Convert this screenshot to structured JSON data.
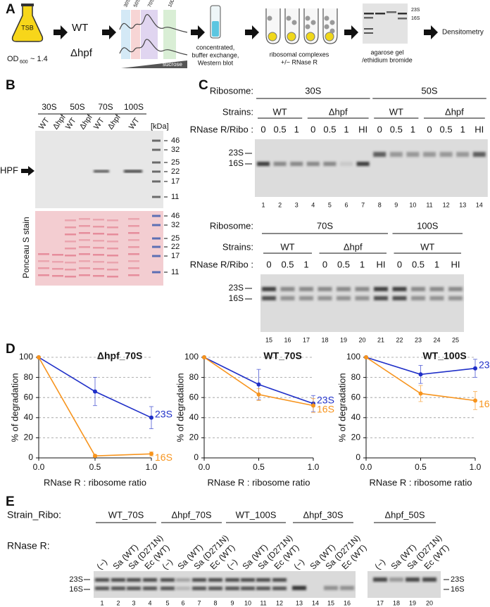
{
  "panel_a": {
    "label": "A",
    "flask": "TSB",
    "od": "OD",
    "od_sub": "600",
    "od_value": "~ 1.4",
    "strains": [
      "WT",
      "Δhpf"
    ],
    "fractions": [
      "30S",
      "50S",
      "70S",
      "100S"
    ],
    "gradient": "sucrose",
    "step2": [
      "concentrated,",
      "buffer exchange,",
      "Western blot"
    ],
    "step3": [
      "ribosomal complexes",
      "+/− RNase R"
    ],
    "gel_bands": [
      "23S",
      "16S"
    ],
    "step4": [
      "agarose gel",
      "/ethidium bromide"
    ],
    "step5": "Densitometry"
  },
  "panel_b": {
    "label": "B",
    "groups": [
      "30S",
      "50S",
      "70S",
      "100S"
    ],
    "lanes": [
      "WT",
      "Δhpf",
      "WT",
      "Δhpf",
      "WT",
      "Δhpf",
      "WT"
    ],
    "unit": "[kDa]",
    "markers": [
      46,
      32,
      25,
      22,
      17,
      11
    ],
    "target": "HPF",
    "stain": "Ponceau S stain"
  },
  "panel_c": {
    "label": "C",
    "ribosome_label": "Ribosome:",
    "strain_label": "Strains:",
    "ratio_label": "RNase R/Ribo :",
    "bands": [
      "23S",
      "16S"
    ],
    "gels": [
      {
        "ribosomes": [
          "30S",
          "50S"
        ],
        "strains": [
          "WT",
          "Δhpf",
          "WT",
          "Δhpf"
        ],
        "ratios": [
          "0",
          "0.5",
          "1",
          "0",
          "0.5",
          "1",
          "HI",
          "0",
          "0.5",
          "1",
          "0",
          "0.5",
          "1",
          "HI"
        ],
        "lanes": [
          1,
          2,
          3,
          4,
          5,
          6,
          7,
          8,
          9,
          10,
          11,
          12,
          13,
          14
        ]
      },
      {
        "ribosomes": [
          "70S",
          "100S"
        ],
        "strains": [
          "WT",
          "Δhpf",
          "WT"
        ],
        "ratios": [
          "0",
          "0.5",
          "1",
          "0",
          "0.5",
          "1",
          "HI",
          "0",
          "0.5",
          "1",
          "HI"
        ],
        "lanes": [
          15,
          16,
          17,
          18,
          19,
          20,
          21,
          22,
          23,
          24,
          25
        ]
      }
    ]
  },
  "panel_d": {
    "label": "D"
  },
  "chart_data": [
    {
      "type": "line",
      "title": "Δhpf_70S",
      "ylabel": "% of degradation",
      "xlabel": "RNase R : ribosome ratio",
      "x": [
        0,
        0.5,
        1
      ],
      "xlim": [
        0,
        1
      ],
      "xticks": [
        {
          "value": 0,
          "label": "0.0"
        },
        0.5,
        {
          "value": 1,
          "label": "1.0"
        }
      ],
      "ylim": [
        0,
        100
      ],
      "yticks": [
        0,
        20,
        40,
        60,
        80,
        100
      ],
      "grid": true,
      "series": [
        {
          "name": "23S",
          "color": "#1f2fc8",
          "values": [
            100,
            66,
            40
          ],
          "errors": [
            0,
            14,
            11
          ]
        },
        {
          "name": "16S",
          "color": "#f7941d",
          "values": [
            100,
            2,
            4
          ],
          "errors": [
            0,
            1,
            2
          ]
        }
      ]
    },
    {
      "type": "line",
      "title": "WT_70S",
      "ylabel": "% of degradation",
      "xlabel": "RNase R : ribosome ratio",
      "x": [
        0,
        0.5,
        1
      ],
      "xlim": [
        0,
        1
      ],
      "xticks": [
        {
          "value": 0,
          "label": "0.0"
        },
        0.5,
        {
          "value": 1,
          "label": "1.0"
        }
      ],
      "ylim": [
        0,
        100
      ],
      "yticks": [
        0,
        20,
        40,
        60,
        80,
        100
      ],
      "grid": true,
      "series": [
        {
          "name": "23S",
          "color": "#1f2fc8",
          "values": [
            100,
            73,
            54
          ],
          "errors": [
            0,
            15,
            8
          ]
        },
        {
          "name": "16S",
          "color": "#f7941d",
          "values": [
            100,
            63,
            52
          ],
          "errors": [
            0,
            6,
            7
          ]
        }
      ]
    },
    {
      "type": "line",
      "title": "WT_100S",
      "ylabel": "% of degradation",
      "xlabel": "RNase R : ribosome ratio",
      "x": [
        0,
        0.5,
        1
      ],
      "xlim": [
        0,
        1
      ],
      "xticks": [
        {
          "value": 0,
          "label": "0.0"
        },
        0.5,
        {
          "value": 1,
          "label": "1.0"
        }
      ],
      "ylim": [
        0,
        100
      ],
      "yticks": [
        0,
        20,
        40,
        60,
        80,
        100
      ],
      "grid": true,
      "series": [
        {
          "name": "23S",
          "color": "#1f2fc8",
          "values": [
            100,
            83,
            89
          ],
          "errors": [
            0,
            9,
            9
          ]
        },
        {
          "name": "16S",
          "color": "#f7941d",
          "values": [
            100,
            64,
            57
          ],
          "errors": [
            0,
            8,
            9
          ]
        }
      ]
    }
  ],
  "panel_e": {
    "label": "E",
    "strain_label": "Strain_Ribo:",
    "groups": [
      "WT_70S",
      "Δhpf_70S",
      "WT_100S",
      "Δhpf_30S",
      "Δhpf_50S"
    ],
    "rnase_label": "RNase R:",
    "treatments": [
      "(−)",
      "Sa (WT)",
      "Sa (D271N)",
      "Ec (WT)",
      "(−)",
      "Sa (WT)",
      "Sa (D271N)",
      "Ec (WT)",
      "(−)",
      "Sa (WT)",
      "Sa (D271N)",
      "Ec (WT)",
      "(−)",
      "Sa (WT)",
      "Sa (D271N)",
      "Ec (WT)",
      "(−)",
      "Sa (WT)",
      "Sa (D271N)",
      "Ec (WT)"
    ],
    "bands": [
      "23S",
      "16S"
    ],
    "bands_right": [
      "23S",
      "16S"
    ],
    "lanes": [
      1,
      2,
      3,
      4,
      5,
      6,
      7,
      8,
      9,
      10,
      11,
      12,
      13,
      14,
      15,
      16,
      17,
      18,
      19,
      20
    ]
  }
}
